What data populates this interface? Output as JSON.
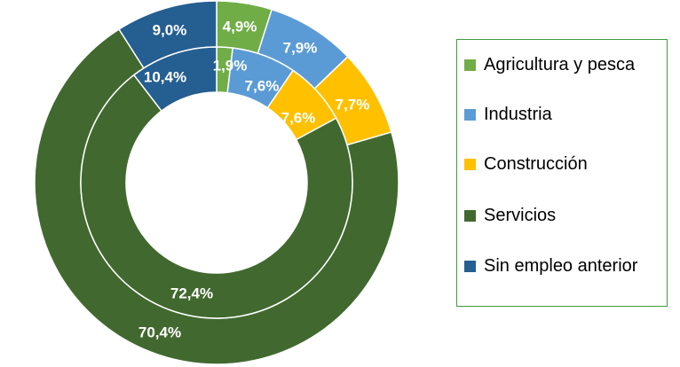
{
  "chart_data": {
    "type": "donut",
    "categories": [
      "Agricultura y pesca",
      "Industria",
      "Construcción",
      "Servicios",
      "Sin empleo anterior"
    ],
    "series": [
      {
        "ring": "outer",
        "values": [
          4.9,
          7.9,
          7.7,
          70.4,
          9.0
        ],
        "value_labels": [
          "4,9%",
          "7,9%",
          "7,7%",
          "70,4%",
          "9,0%"
        ]
      },
      {
        "ring": "inner",
        "values": [
          1.9,
          7.6,
          7.6,
          72.4,
          10.4
        ],
        "value_labels": [
          "1,9%",
          "7,6%",
          "7,6%",
          "72,4%",
          "10,4%"
        ]
      }
    ],
    "legend_position": "right"
  },
  "colors": {
    "Agricultura y pesca": "#70ad47",
    "Industria": "#5b9bd5",
    "Construcción": "#ffc000",
    "Servicios": "#41692f",
    "Sin empleo anterior": "#255e91",
    "legend_border": "#3f9b3f"
  },
  "legend": {
    "items": [
      {
        "label": "Agricultura y pesca",
        "color": "#70ad47"
      },
      {
        "label": "Industria",
        "color": "#5b9bd5"
      },
      {
        "label": "Construcción",
        "color": "#ffc000"
      },
      {
        "label": "Servicios",
        "color": "#41692f"
      },
      {
        "label": "Sin empleo anterior",
        "color": "#255e91"
      }
    ]
  }
}
